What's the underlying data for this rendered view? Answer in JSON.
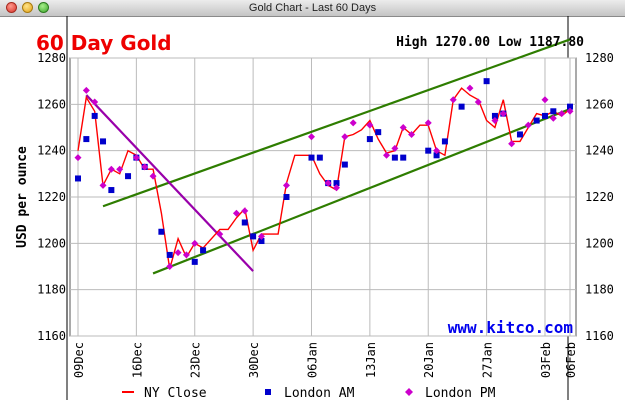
{
  "window": {
    "title": "Gold Chart - Last 60 Days"
  },
  "chart_data": {
    "type": "line",
    "title": "60 Day Gold",
    "subtitle": "High 1270.00 Low 1187.80",
    "ylabel": "USD per ounce",
    "xlabel": "",
    "ylim": [
      1160,
      1280
    ],
    "yticks": [
      1160,
      1180,
      1200,
      1220,
      1240,
      1260,
      1280
    ],
    "x_start": "2013-12-09",
    "xlim": [
      "2013-12-09",
      "2014-02-06"
    ],
    "xticks": [
      {
        "date": "2013-12-09",
        "label": "09Dec"
      },
      {
        "date": "2013-12-16",
        "label": "16Dec"
      },
      {
        "date": "2013-12-23",
        "label": "23Dec"
      },
      {
        "date": "2013-12-30",
        "label": "30Dec"
      },
      {
        "date": "2014-01-06",
        "label": "06Jan"
      },
      {
        "date": "2014-01-13",
        "label": "13Jan"
      },
      {
        "date": "2014-01-20",
        "label": "20Jan"
      },
      {
        "date": "2014-01-27",
        "label": "27Jan"
      },
      {
        "date": "2014-02-03",
        "label": "03Feb"
      },
      {
        "date": "2014-02-06",
        "label": "06Feb"
      }
    ],
    "grid": true,
    "legend_position": "bottom",
    "watermark": "www.kitco.com",
    "series": [
      {
        "name": "NY Close",
        "color": "#ff0000",
        "style": "line",
        "points": [
          [
            "2013-12-09",
            1240
          ],
          [
            "2013-12-10",
            1263
          ],
          [
            "2013-12-11",
            1257
          ],
          [
            "2013-12-12",
            1225
          ],
          [
            "2013-12-13",
            1232
          ],
          [
            "2013-12-14",
            1230
          ],
          [
            "2013-12-15",
            1240
          ],
          [
            "2013-12-16",
            1238
          ],
          [
            "2013-12-17",
            1232
          ],
          [
            "2013-12-18",
            1232
          ],
          [
            "2013-12-19",
            1213
          ],
          [
            "2013-12-20",
            1189
          ],
          [
            "2013-12-21",
            1202
          ],
          [
            "2013-12-22",
            1194
          ],
          [
            "2013-12-23",
            1200
          ],
          [
            "2013-12-24",
            1198
          ],
          [
            "2013-12-26",
            1206
          ],
          [
            "2013-12-27",
            1206
          ],
          [
            "2013-12-28",
            1211
          ],
          [
            "2013-12-29",
            1215
          ],
          [
            "2013-12-30",
            1197
          ],
          [
            "2013-12-31",
            1204
          ],
          [
            "2014-01-01",
            1204
          ],
          [
            "2014-01-02",
            1204
          ],
          [
            "2014-01-03",
            1226
          ],
          [
            "2014-01-04",
            1238
          ],
          [
            "2014-01-05",
            1238
          ],
          [
            "2014-01-06",
            1238
          ],
          [
            "2014-01-07",
            1230
          ],
          [
            "2014-01-08",
            1225
          ],
          [
            "2014-01-09",
            1223
          ],
          [
            "2014-01-10",
            1246
          ],
          [
            "2014-01-11",
            1247
          ],
          [
            "2014-01-12",
            1249
          ],
          [
            "2014-01-13",
            1253
          ],
          [
            "2014-01-14",
            1245
          ],
          [
            "2014-01-15",
            1239
          ],
          [
            "2014-01-16",
            1240
          ],
          [
            "2014-01-17",
            1250
          ],
          [
            "2014-01-18",
            1247
          ],
          [
            "2014-01-19",
            1251
          ],
          [
            "2014-01-20",
            1251
          ],
          [
            "2014-01-21",
            1240
          ],
          [
            "2014-01-22",
            1238
          ],
          [
            "2014-01-23",
            1262
          ],
          [
            "2014-01-24",
            1267
          ],
          [
            "2014-01-25",
            1264
          ],
          [
            "2014-01-26",
            1262
          ],
          [
            "2014-01-27",
            1253
          ],
          [
            "2014-01-28",
            1250
          ],
          [
            "2014-01-29",
            1262
          ],
          [
            "2014-01-30",
            1244
          ],
          [
            "2014-01-31",
            1244
          ],
          [
            "2014-02-01",
            1250
          ],
          [
            "2014-02-02",
            1256
          ],
          [
            "2014-02-03",
            1255
          ],
          [
            "2014-02-04",
            1257
          ],
          [
            "2014-02-05",
            1255
          ],
          [
            "2014-02-06",
            1258
          ]
        ]
      },
      {
        "name": "London AM",
        "color": "#0000cc",
        "style": "square",
        "points": [
          [
            "2013-12-09",
            1228
          ],
          [
            "2013-12-10",
            1245
          ],
          [
            "2013-12-11",
            1255
          ],
          [
            "2013-12-12",
            1244
          ],
          [
            "2013-12-13",
            1223
          ],
          [
            "2013-12-15",
            1229
          ],
          [
            "2013-12-16",
            1237
          ],
          [
            "2013-12-17",
            1233
          ],
          [
            "2013-12-19",
            1205
          ],
          [
            "2013-12-20",
            1195
          ],
          [
            "2013-12-23",
            1192
          ],
          [
            "2013-12-24",
            1197
          ],
          [
            "2013-12-29",
            1209
          ],
          [
            "2013-12-30",
            1203
          ],
          [
            "2013-12-31",
            1201
          ],
          [
            "2014-01-03",
            1220
          ],
          [
            "2014-01-06",
            1237
          ],
          [
            "2014-01-07",
            1237
          ],
          [
            "2014-01-08",
            1226
          ],
          [
            "2014-01-09",
            1226
          ],
          [
            "2014-01-10",
            1234
          ],
          [
            "2014-01-13",
            1245
          ],
          [
            "2014-01-14",
            1248
          ],
          [
            "2014-01-16",
            1237
          ],
          [
            "2014-01-17",
            1237
          ],
          [
            "2014-01-20",
            1240
          ],
          [
            "2014-01-21",
            1238
          ],
          [
            "2014-01-22",
            1244
          ],
          [
            "2014-01-24",
            1259
          ],
          [
            "2014-01-27",
            1270
          ],
          [
            "2014-01-28",
            1255
          ],
          [
            "2014-01-29",
            1256
          ],
          [
            "2014-01-31",
            1247
          ],
          [
            "2014-02-02",
            1253
          ],
          [
            "2014-02-03",
            1255
          ],
          [
            "2014-02-04",
            1257
          ],
          [
            "2014-02-06",
            1259
          ]
        ]
      },
      {
        "name": "London PM",
        "color": "#cc00cc",
        "style": "diamond",
        "points": [
          [
            "2013-12-09",
            1237
          ],
          [
            "2013-12-10",
            1266
          ],
          [
            "2013-12-11",
            1261
          ],
          [
            "2013-12-12",
            1225
          ],
          [
            "2013-12-13",
            1232
          ],
          [
            "2013-12-14",
            1232
          ],
          [
            "2013-12-16",
            1237
          ],
          [
            "2013-12-17",
            1233
          ],
          [
            "2013-12-18",
            1229
          ],
          [
            "2013-12-20",
            1190
          ],
          [
            "2013-12-21",
            1196
          ],
          [
            "2013-12-22",
            1195
          ],
          [
            "2013-12-23",
            1200
          ],
          [
            "2013-12-26",
            1204
          ],
          [
            "2013-12-28",
            1213
          ],
          [
            "2013-12-29",
            1214
          ],
          [
            "2013-12-31",
            1203
          ],
          [
            "2014-01-03",
            1225
          ],
          [
            "2014-01-06",
            1246
          ],
          [
            "2014-01-08",
            1226
          ],
          [
            "2014-01-09",
            1224
          ],
          [
            "2014-01-10",
            1246
          ],
          [
            "2014-01-11",
            1252
          ],
          [
            "2014-01-13",
            1251
          ],
          [
            "2014-01-15",
            1238
          ],
          [
            "2014-01-16",
            1241
          ],
          [
            "2014-01-17",
            1250
          ],
          [
            "2014-01-18",
            1247
          ],
          [
            "2014-01-20",
            1252
          ],
          [
            "2014-01-21",
            1240
          ],
          [
            "2014-01-23",
            1262
          ],
          [
            "2014-01-25",
            1267
          ],
          [
            "2014-01-26",
            1261
          ],
          [
            "2014-01-28",
            1253
          ],
          [
            "2014-01-29",
            1256
          ],
          [
            "2014-01-30",
            1243
          ],
          [
            "2014-02-01",
            1251
          ],
          [
            "2014-02-03",
            1262
          ],
          [
            "2014-02-04",
            1254
          ],
          [
            "2014-02-05",
            1256
          ],
          [
            "2014-02-06",
            1257
          ]
        ]
      }
    ],
    "annotations": [
      {
        "type": "trendline",
        "name": "upper-channel",
        "color": "#2e7d00",
        "from": [
          "2013-12-12",
          1216
        ],
        "to": [
          "2014-02-06",
          1288
        ]
      },
      {
        "type": "trendline",
        "name": "lower-channel",
        "color": "#2e7d00",
        "from": [
          "2013-12-18",
          1187
        ],
        "to": [
          "2014-02-06",
          1258
        ]
      },
      {
        "type": "trendline",
        "name": "downtrend",
        "color": "#9900aa",
        "from": [
          "2013-12-10",
          1264
        ],
        "to": [
          "2013-12-30",
          1188
        ]
      }
    ]
  }
}
